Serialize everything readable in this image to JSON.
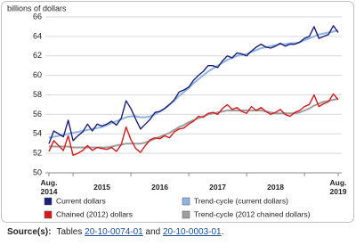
{
  "chart_data": {
    "type": "line",
    "y_axis_label": "billions of dollars",
    "categories": [
      "Aug.\n2014",
      null,
      null,
      null,
      null,
      null,
      null,
      null,
      null,
      null,
      null,
      "2015",
      null,
      null,
      null,
      null,
      null,
      null,
      null,
      null,
      null,
      null,
      null,
      "2016",
      null,
      null,
      null,
      null,
      null,
      null,
      null,
      null,
      null,
      null,
      null,
      "2017",
      null,
      null,
      null,
      null,
      null,
      null,
      null,
      null,
      null,
      null,
      null,
      "2018",
      null,
      null,
      null,
      null,
      null,
      null,
      null,
      null,
      null,
      null,
      null,
      null,
      "Aug.\n2019"
    ],
    "ylim": [
      50,
      66
    ],
    "yticks": [
      50,
      52,
      54,
      56,
      58,
      60,
      62,
      64,
      66
    ],
    "grid": true,
    "legend_position": "bottom",
    "series": [
      {
        "name": "Current dollars",
        "color": "#1c1f7c",
        "values": [
          53.0,
          54.3,
          54.0,
          53.7,
          55.4,
          53.3,
          53.8,
          54.2,
          55.0,
          54.3,
          55.0,
          54.8,
          55.0,
          55.3,
          54.9,
          55.6,
          57.4,
          56.6,
          55.5,
          54.5,
          55.0,
          55.5,
          56.2,
          56.3,
          56.6,
          57.0,
          57.5,
          58.3,
          58.5,
          58.8,
          59.5,
          60.0,
          60.4,
          61.0,
          61.0,
          60.8,
          61.5,
          62.0,
          61.8,
          62.3,
          62.2,
          62.0,
          62.5,
          62.9,
          63.2,
          62.9,
          62.8,
          63.0,
          63.3,
          63.0,
          63.2,
          63.2,
          63.4,
          63.8,
          64.0,
          65.0,
          63.8,
          64.0,
          64.2,
          65.1,
          64.4
        ]
      },
      {
        "name": "Trend-cycle (current dollars)",
        "color": "#8db4e2",
        "values": [
          53.6,
          53.7,
          53.8,
          53.9,
          54.0,
          54.1,
          54.2,
          54.3,
          54.4,
          54.5,
          54.6,
          54.7,
          54.9,
          55.1,
          55.3,
          55.5,
          55.7,
          55.8,
          55.8,
          55.7,
          55.7,
          55.8,
          56.0,
          56.3,
          56.6,
          57.0,
          57.4,
          57.9,
          58.3,
          58.7,
          59.2,
          59.6,
          60.0,
          60.4,
          60.7,
          61.0,
          61.3,
          61.6,
          61.8,
          62.0,
          62.1,
          62.2,
          62.4,
          62.6,
          62.8,
          62.9,
          63.0,
          63.1,
          63.2,
          63.2,
          63.3,
          63.3,
          63.4,
          63.6,
          63.8,
          64.0,
          64.2,
          64.3,
          64.4,
          64.5,
          64.6
        ]
      },
      {
        "name": "Chained (2012) dollars",
        "color": "#d7191c",
        "values": [
          52.2,
          53.3,
          52.8,
          52.3,
          53.8,
          51.8,
          52.0,
          52.3,
          52.8,
          52.3,
          52.6,
          52.5,
          52.4,
          52.6,
          52.2,
          52.9,
          54.7,
          53.4,
          52.5,
          52.1,
          52.8,
          53.4,
          53.6,
          53.5,
          53.8,
          53.6,
          54.2,
          54.5,
          54.6,
          55.0,
          55.3,
          55.8,
          55.7,
          56.1,
          56.2,
          56.0,
          56.6,
          57.0,
          56.5,
          56.7,
          56.3,
          56.1,
          56.8,
          56.4,
          56.7,
          56.3,
          56.0,
          56.2,
          56.5,
          56.0,
          55.8,
          56.2,
          56.4,
          56.8,
          57.0,
          58.0,
          56.8,
          57.1,
          57.3,
          58.1,
          57.5
        ]
      },
      {
        "name": "Trend-cycle (2012 chained dollars)",
        "color": "#9e9e9e",
        "values": [
          52.7,
          52.7,
          52.7,
          52.7,
          52.7,
          52.6,
          52.6,
          52.6,
          52.6,
          52.6,
          52.6,
          52.6,
          52.6,
          52.7,
          52.8,
          52.9,
          53.0,
          53.0,
          53.0,
          53.0,
          53.1,
          53.3,
          53.5,
          53.7,
          53.9,
          54.1,
          54.4,
          54.7,
          54.9,
          55.2,
          55.4,
          55.6,
          55.8,
          56.0,
          56.1,
          56.2,
          56.3,
          56.4,
          56.4,
          56.4,
          56.4,
          56.4,
          56.4,
          56.4,
          56.4,
          56.3,
          56.2,
          56.1,
          56.1,
          56.1,
          56.1,
          56.1,
          56.2,
          56.4,
          56.6,
          56.9,
          57.1,
          57.3,
          57.4,
          57.5,
          57.6
        ]
      }
    ]
  },
  "source": {
    "label": "Source(s):",
    "text_1": "Tables",
    "link_1": "20-10-0074-01",
    "text_2": "and",
    "link_2": "20-10-0003-01",
    "text_3": "."
  }
}
